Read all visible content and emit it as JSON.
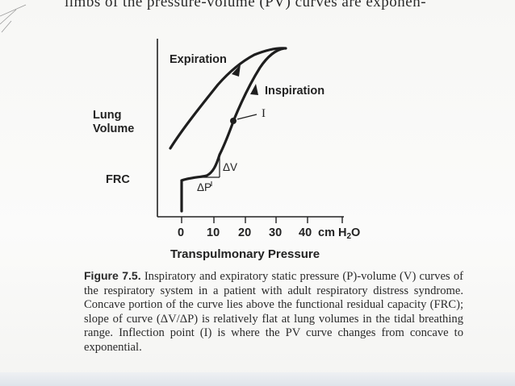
{
  "header_text": "limbs of the pressure-volume (PV) curves are exponen-",
  "figure": {
    "curve_labels": {
      "expiration": "Expiration",
      "inspiration": "Inspiration",
      "inflection": "I"
    },
    "y_labels": {
      "lung_volume_line1": "Lung",
      "lung_volume_line2": "Volume",
      "frc": "FRC"
    },
    "delta_v": "ΔV",
    "delta_p": "ΔP",
    "x_ticks": [
      "0",
      "10",
      "20",
      "30",
      "40"
    ],
    "x_unit_prefix": "cm H",
    "x_unit_sub": "2",
    "x_unit_suffix": "O",
    "x_axis_title": "Transpulmonary Pressure"
  },
  "caption": {
    "label": "Figure 7.5.",
    "text": "Inspiratory and expiratory static pressure (P)-volume (V) curves of the respiratory system in a patient with adult respiratory distress syndrome. Concave portion of the curve lies above the functional residual capacity (FRC); slope of curve (ΔV/ΔP) is relatively flat at lung volumes in the tidal breathing range. Inflection point (I) is where the PV curve changes from concave to exponential."
  }
}
